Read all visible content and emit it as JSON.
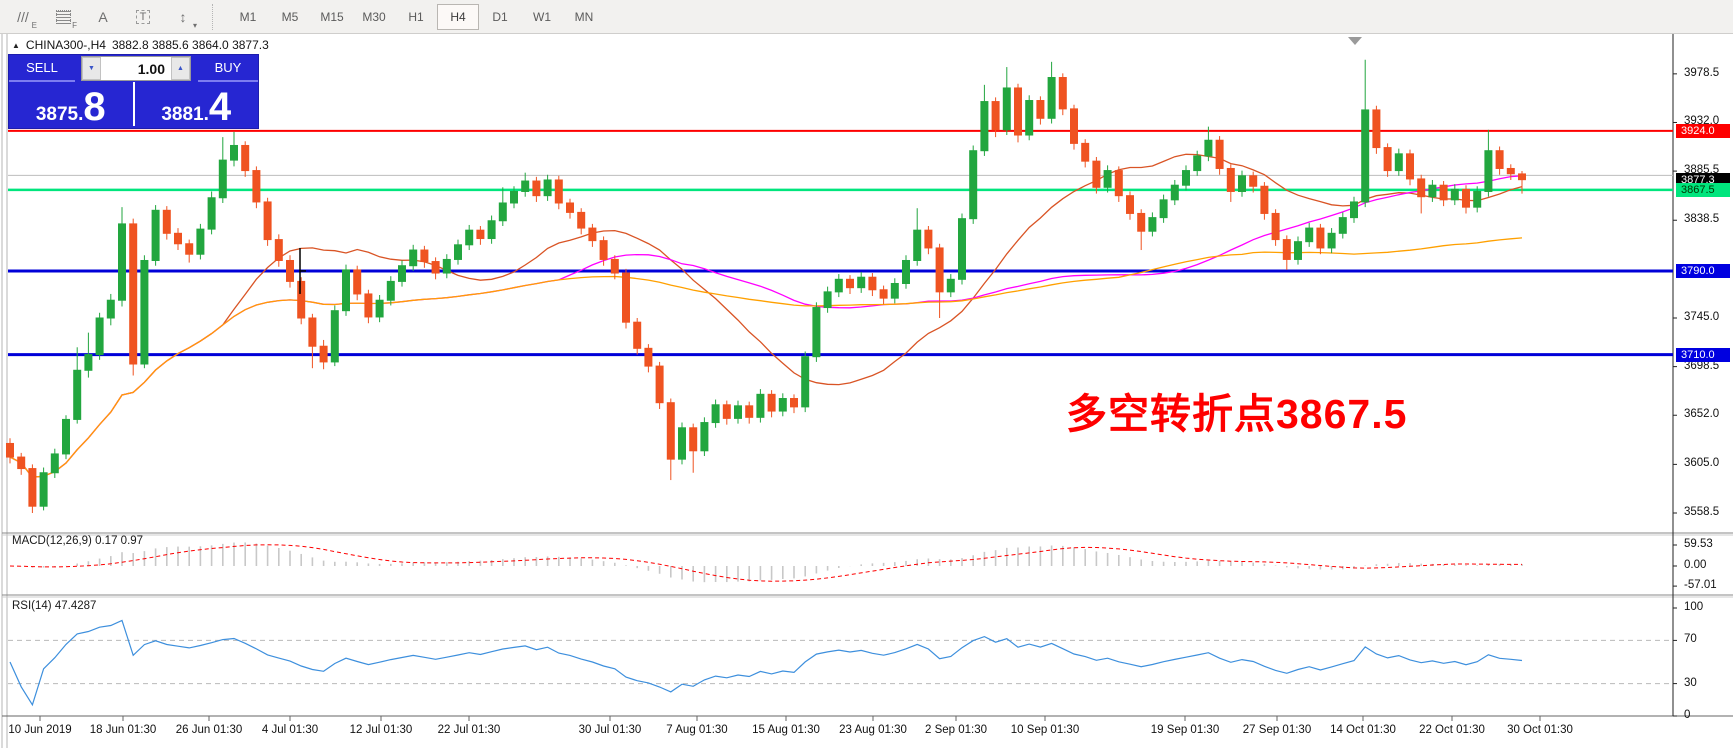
{
  "toolbar": {
    "tools": [
      {
        "name": "equidistant-channel-icon",
        "glyph": "///",
        "sub": "E"
      },
      {
        "name": "fibonacci-grid-icon",
        "glyph": "grid",
        "sub": "F"
      },
      {
        "name": "text-label-icon",
        "glyph": "A",
        "sub": ""
      },
      {
        "name": "text-box-icon",
        "glyph": "T",
        "sub": ""
      },
      {
        "name": "arrows-icon",
        "glyph": "↕",
        "sub": "▾"
      }
    ],
    "timeframes": [
      "M1",
      "M5",
      "M15",
      "M30",
      "H1",
      "H4",
      "D1",
      "W1",
      "MN"
    ],
    "active_timeframe": "H4"
  },
  "title": {
    "collapse_icon": "▲",
    "symbol": "CHINA300-,H4",
    "ohlc": "3882.8 3885.6 3864.0 3877.3"
  },
  "trade_panel": {
    "sell_label": "SELL",
    "buy_label": "BUY",
    "volume": "1.00",
    "spin_down_icon": "▼",
    "spin_up_icon": "▲",
    "sell_price": {
      "main": "3875",
      "dot": ".",
      "big": "8"
    },
    "buy_price": {
      "main": "3881",
      "dot": ".",
      "big": "4"
    }
  },
  "annotation": {
    "text": "多空转折点3867.5",
    "color": "#fe0000"
  },
  "price_axis": {
    "ticks": [
      "3978.5",
      "3932.0",
      "3885.5",
      "3838.5",
      "3745.0",
      "3698.5",
      "3652.0",
      "3605.0",
      "3558.5"
    ],
    "tick_values": [
      3978.5,
      3932.0,
      3885.5,
      3838.5,
      3745.0,
      3698.5,
      3652.0,
      3605.0,
      3558.5
    ],
    "badges": [
      {
        "label": "3924.0",
        "value": 3924.0,
        "bg": "#fe0000",
        "fg": "#ffffff"
      },
      {
        "label": "3877.3",
        "value": 3877.3,
        "bg": "#000000",
        "fg": "#ffffff"
      },
      {
        "label": "3867.5",
        "value": 3867.5,
        "bg": "#00e57d",
        "fg": "#003300"
      },
      {
        "label": "3790.0",
        "value": 3790.0,
        "bg": "#0000e0",
        "fg": "#ffffff"
      },
      {
        "label": "3710.0",
        "value": 3710.0,
        "bg": "#0000e0",
        "fg": "#ffffff"
      }
    ]
  },
  "time_axis": {
    "labels": [
      "10 Jun 2019",
      "18 Jun 01:30",
      "26 Jun 01:30",
      "4 Jul 01:30",
      "12 Jul 01:30",
      "22 Jul 01:30",
      "30 Jul 01:30",
      "7 Aug 01:30",
      "15 Aug 01:30",
      "23 Aug 01:30",
      "2 Sep 01:30",
      "10 Sep 01:30",
      "19 Sep 01:30",
      "27 Sep 01:30",
      "14 Oct 01:30",
      "22 Oct 01:30",
      "30 Oct 01:30"
    ]
  },
  "indicators": {
    "macd": {
      "label": "MACD(12,26,9)",
      "values": "0.17 0.97",
      "axis": [
        "59.53",
        "0.00",
        "-57.01"
      ],
      "axis_values": [
        59.53,
        0.0,
        -57.01
      ],
      "histogram_color": "#c8c8c8",
      "signal_color": "#fe0000"
    },
    "rsi": {
      "label": "RSI(14)",
      "value": "47.4287",
      "axis": [
        "100",
        "70",
        "30",
        "0"
      ],
      "axis_values": [
        100,
        70,
        30,
        0
      ],
      "guides": [
        70,
        30
      ],
      "line_color": "#3d8fdd"
    }
  },
  "chart_data": {
    "type": "candlestick",
    "symbol": "CHINA300-",
    "timeframe": "H4",
    "title": "CHINA300-,H4 3882.8 3885.6 3864.0 3877.3",
    "ylim": [
      3539,
      4018
    ],
    "bull_color": "#22a63f",
    "bear_color": "#ef5321",
    "candles": [
      [
        3625,
        3630,
        3606,
        3612
      ],
      [
        3612,
        3616,
        3595,
        3601
      ],
      [
        3601,
        3605,
        3558.5,
        3565
      ],
      [
        3565,
        3602,
        3561,
        3597
      ],
      [
        3597,
        3620,
        3592,
        3615
      ],
      [
        3615,
        3652,
        3610,
        3648
      ],
      [
        3648,
        3717,
        3644,
        3695
      ],
      [
        3695,
        3731,
        3688,
        3710
      ],
      [
        3710,
        3750,
        3705,
        3745
      ],
      [
        3745,
        3768,
        3738,
        3762
      ],
      [
        3762,
        3851,
        3756,
        3835
      ],
      [
        3835,
        3840,
        3690,
        3701
      ],
      [
        3701,
        3805,
        3697,
        3800
      ],
      [
        3800,
        3853,
        3795,
        3848
      ],
      [
        3848,
        3852,
        3820,
        3826
      ],
      [
        3826,
        3831,
        3810,
        3816
      ],
      [
        3816,
        3820,
        3798,
        3806
      ],
      [
        3806,
        3835,
        3801,
        3830
      ],
      [
        3830,
        3866,
        3825,
        3860
      ],
      [
        3860,
        3918,
        3855,
        3896
      ],
      [
        3896,
        3923,
        3890,
        3910
      ],
      [
        3910,
        3914,
        3880,
        3886
      ],
      [
        3886,
        3890,
        3850,
        3856
      ],
      [
        3856,
        3860,
        3814,
        3820
      ],
      [
        3820,
        3825,
        3794,
        3800
      ],
      [
        3800,
        3805,
        3774,
        3780
      ],
      [
        3780,
        3784,
        3739,
        3745
      ],
      [
        3745,
        3749,
        3697,
        3718
      ],
      [
        3718,
        3724,
        3696,
        3703
      ],
      [
        3703,
        3757,
        3699,
        3752
      ],
      [
        3752,
        3796,
        3747,
        3791
      ],
      [
        3791,
        3795,
        3762,
        3768
      ],
      [
        3768,
        3772,
        3740,
        3746
      ],
      [
        3746,
        3767,
        3741,
        3762
      ],
      [
        3762,
        3785,
        3757,
        3780
      ],
      [
        3780,
        3800,
        3775,
        3795
      ],
      [
        3795,
        3815,
        3790,
        3810
      ],
      [
        3810,
        3814,
        3793,
        3799
      ],
      [
        3799,
        3803,
        3782,
        3788
      ],
      [
        3788,
        3806,
        3783,
        3801
      ],
      [
        3801,
        3820,
        3796,
        3815
      ],
      [
        3815,
        3834,
        3810,
        3829
      ],
      [
        3829,
        3833,
        3815,
        3821
      ],
      [
        3821,
        3843,
        3816,
        3838
      ],
      [
        3838,
        3870,
        3833,
        3855
      ],
      [
        3855,
        3871,
        3850,
        3866
      ],
      [
        3866,
        3884,
        3861,
        3876
      ],
      [
        3876,
        3880,
        3856,
        3862
      ],
      [
        3862,
        3882,
        3857,
        3877
      ],
      [
        3877,
        3881,
        3849,
        3855
      ],
      [
        3855,
        3859,
        3840,
        3846
      ],
      [
        3846,
        3850,
        3825,
        3831
      ],
      [
        3831,
        3835,
        3813,
        3819
      ],
      [
        3819,
        3823,
        3795,
        3801
      ],
      [
        3801,
        3805,
        3782,
        3788
      ],
      [
        3788,
        3792,
        3735,
        3741
      ],
      [
        3741,
        3745,
        3710,
        3716
      ],
      [
        3716,
        3720,
        3693,
        3699
      ],
      [
        3699,
        3703,
        3658,
        3664
      ],
      [
        3664,
        3668,
        3590,
        3610
      ],
      [
        3610,
        3645,
        3605,
        3640
      ],
      [
        3640,
        3644,
        3597,
        3618
      ],
      [
        3618,
        3650,
        3613,
        3645
      ],
      [
        3645,
        3667,
        3640,
        3662
      ],
      [
        3662,
        3666,
        3643,
        3649
      ],
      [
        3649,
        3666,
        3644,
        3661
      ],
      [
        3661,
        3665,
        3644,
        3650
      ],
      [
        3650,
        3677,
        3645,
        3672
      ],
      [
        3672,
        3676,
        3650,
        3656
      ],
      [
        3656,
        3673,
        3651,
        3668
      ],
      [
        3668,
        3672,
        3654,
        3660
      ],
      [
        3660,
        3713,
        3655,
        3708
      ],
      [
        3708,
        3760,
        3703,
        3755
      ],
      [
        3755,
        3775,
        3750,
        3770
      ],
      [
        3770,
        3787,
        3765,
        3782
      ],
      [
        3782,
        3786,
        3768,
        3774
      ],
      [
        3774,
        3789,
        3769,
        3784
      ],
      [
        3784,
        3788,
        3766,
        3772
      ],
      [
        3772,
        3776,
        3758,
        3764
      ],
      [
        3764,
        3783,
        3759,
        3778
      ],
      [
        3778,
        3805,
        3773,
        3800
      ],
      [
        3800,
        3850,
        3795,
        3829
      ],
      [
        3829,
        3833,
        3806,
        3812
      ],
      [
        3812,
        3816,
        3745,
        3770
      ],
      [
        3770,
        3787,
        3765,
        3782
      ],
      [
        3782,
        3845,
        3777,
        3840
      ],
      [
        3840,
        3910,
        3835,
        3905
      ],
      [
        3905,
        3968,
        3900,
        3952
      ],
      [
        3952,
        3956,
        3918,
        3925
      ],
      [
        3925,
        3985,
        3920,
        3965
      ],
      [
        3965,
        3969,
        3913,
        3920
      ],
      [
        3920,
        3958,
        3915,
        3953
      ],
      [
        3953,
        3957,
        3930,
        3936
      ],
      [
        3936,
        3990,
        3931,
        3975
      ],
      [
        3975,
        3979,
        3939,
        3945
      ],
      [
        3945,
        3949,
        3906,
        3912
      ],
      [
        3912,
        3916,
        3889,
        3895
      ],
      [
        3895,
        3899,
        3864,
        3870
      ],
      [
        3870,
        3891,
        3865,
        3886
      ],
      [
        3886,
        3890,
        3856,
        3862
      ],
      [
        3862,
        3866,
        3839,
        3845
      ],
      [
        3845,
        3849,
        3810,
        3828
      ],
      [
        3828,
        3846,
        3823,
        3841
      ],
      [
        3841,
        3863,
        3836,
        3858
      ],
      [
        3858,
        3877,
        3853,
        3872
      ],
      [
        3872,
        3891,
        3867,
        3886
      ],
      [
        3886,
        3905,
        3881,
        3900
      ],
      [
        3900,
        3928,
        3895,
        3915
      ],
      [
        3915,
        3919,
        3882,
        3888
      ],
      [
        3888,
        3892,
        3856,
        3866
      ],
      [
        3866,
        3886,
        3861,
        3881
      ],
      [
        3881,
        3885,
        3865,
        3871
      ],
      [
        3871,
        3875,
        3839,
        3845
      ],
      [
        3845,
        3849,
        3814,
        3820
      ],
      [
        3820,
        3824,
        3791,
        3801
      ],
      [
        3801,
        3823,
        3796,
        3818
      ],
      [
        3818,
        3836,
        3813,
        3831
      ],
      [
        3831,
        3835,
        3806,
        3812
      ],
      [
        3812,
        3831,
        3807,
        3826
      ],
      [
        3826,
        3846,
        3821,
        3841
      ],
      [
        3841,
        3861,
        3836,
        3856
      ],
      [
        3856,
        3992,
        3851,
        3944
      ],
      [
        3944,
        3948,
        3902,
        3908
      ],
      [
        3908,
        3912,
        3880,
        3886
      ],
      [
        3886,
        3907,
        3881,
        3902
      ],
      [
        3902,
        3906,
        3872,
        3878
      ],
      [
        3878,
        3882,
        3845,
        3861
      ],
      [
        3861,
        3877,
        3856,
        3872
      ],
      [
        3872,
        3876,
        3852,
        3858
      ],
      [
        3858,
        3873,
        3853,
        3868
      ],
      [
        3868,
        3872,
        3845,
        3851
      ],
      [
        3851,
        3871,
        3846,
        3866
      ],
      [
        3866,
        3925,
        3861,
        3905
      ],
      [
        3905,
        3909,
        3882,
        3888
      ],
      [
        3888,
        3892,
        3877,
        3883
      ],
      [
        3882.8,
        3885.6,
        3864.0,
        3877.3
      ]
    ],
    "hlines": [
      {
        "price": 3924.0,
        "color": "#fe0000",
        "width": 2
      },
      {
        "price": 3867.5,
        "color": "#00e57d",
        "width": 2.5
      },
      {
        "price": 3790.0,
        "color": "#0000d8",
        "width": 3
      },
      {
        "price": 3710.0,
        "color": "#0000d8",
        "width": 3
      }
    ],
    "ask_line": {
      "price": 3881.4,
      "color": "#bdbdbd",
      "width": 1
    },
    "moving_averages": [
      {
        "period": 20,
        "color": "#d95425"
      },
      {
        "period": 50,
        "color": "#ff00ff"
      },
      {
        "period": 100,
        "color": "#ffa000"
      }
    ],
    "macd_params": [
      12,
      26,
      9
    ],
    "rsi_period": 14
  }
}
